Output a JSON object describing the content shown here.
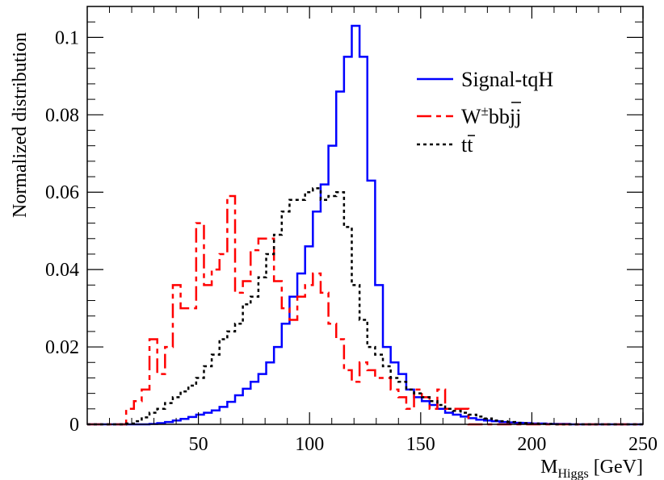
{
  "chart_data": {
    "type": "line",
    "title": "",
    "xlabel": "[GeV]",
    "xlabel_main": "M",
    "xlabel_sub": "Higgs",
    "ylabel": "Normalized distribution",
    "xlim": [
      0,
      250
    ],
    "ylim": [
      0,
      0.108
    ],
    "xticks": [
      50,
      100,
      150,
      200,
      250
    ],
    "xtick_labels": [
      "50",
      "100",
      "150",
      "200",
      "250"
    ],
    "yticks": [
      0,
      0.02,
      0.04,
      0.06,
      0.08,
      0.1
    ],
    "ytick_labels": [
      "0",
      "0.02",
      "0.04",
      "0.06",
      "0.08",
      "0.1"
    ],
    "grid": false,
    "legend_position": "top-right",
    "bin_width": 3.5,
    "bins_start": 0,
    "series": [
      {
        "name": "Signal-tqH",
        "color": "#0000ff",
        "style": "solid",
        "values": [
          0,
          0,
          0,
          0,
          0,
          0,
          0,
          0,
          0.0001,
          0.0003,
          0.0006,
          0.001,
          0.0014,
          0.0019,
          0.0025,
          0.003,
          0.0036,
          0.0045,
          0.0058,
          0.0075,
          0.0092,
          0.011,
          0.013,
          0.016,
          0.02,
          0.026,
          0.033,
          0.039,
          0.046,
          0.055,
          0.062,
          0.072,
          0.086,
          0.095,
          0.103,
          0.095,
          0.063,
          0.036,
          0.02,
          0.016,
          0.013,
          0.009,
          0.007,
          0.006,
          0.005,
          0.004,
          0.003,
          0.0025,
          0.002,
          0.0016,
          0.0012,
          0.001,
          0.0008,
          0.0006,
          0.0005,
          0.0004,
          0.0003,
          0.0002,
          0.0002,
          0.0001,
          0.0001,
          0.0001,
          0,
          0,
          0,
          0,
          0,
          0,
          0,
          0,
          0,
          0
        ]
      },
      {
        "name": "W±bb̄jj",
        "color": "#ff0000",
        "style": "dashed",
        "values": [
          0,
          0,
          0,
          0,
          0,
          0.004,
          0.006,
          0.009,
          0.022,
          0.013,
          0.02,
          0.036,
          0.03,
          0.03,
          0.052,
          0.036,
          0.04,
          0.044,
          0.059,
          0.034,
          0.037,
          0.045,
          0.048,
          0.048,
          0.037,
          0.03,
          0.027,
          0.033,
          0.036,
          0.039,
          0.034,
          0.026,
          0.022,
          0.014,
          0.011,
          0.016,
          0.014,
          0.012,
          0.012,
          0.009,
          0.007,
          0.004,
          0.009,
          0.007,
          0.004,
          0.009,
          0.004,
          0.004,
          0.004,
          0,
          0,
          0,
          0,
          0,
          0,
          0,
          0,
          0,
          0,
          0,
          0,
          0,
          0,
          0,
          0,
          0,
          0,
          0,
          0,
          0,
          0,
          0
        ]
      },
      {
        "name": "tt̄",
        "color": "#000000",
        "style": "dotted",
        "values": [
          0,
          0,
          0,
          0,
          0,
          0.0002,
          0.0008,
          0.0018,
          0.003,
          0.004,
          0.0055,
          0.007,
          0.0085,
          0.01,
          0.012,
          0.015,
          0.018,
          0.022,
          0.024,
          0.026,
          0.031,
          0.033,
          0.038,
          0.044,
          0.049,
          0.055,
          0.058,
          0.058,
          0.06,
          0.061,
          0.058,
          0.059,
          0.06,
          0.051,
          0.036,
          0.027,
          0.02,
          0.018,
          0.015,
          0.012,
          0.011,
          0.009,
          0.008,
          0.007,
          0.006,
          0.005,
          0.004,
          0.0035,
          0.003,
          0.0025,
          0.002,
          0.0015,
          0.001,
          0.0008,
          0.0006,
          0.0004,
          0.0003,
          0.0002,
          0.0001,
          0.0001,
          0,
          0,
          0,
          0,
          0,
          0,
          0,
          0,
          0,
          0,
          0,
          0
        ]
      }
    ],
    "legend": {
      "signal": "Signal-tqH",
      "wbb_main": "W",
      "wbb_sup": "±",
      "wbb_b1": "b",
      "wbb_b2": "b",
      "wbb_jj": "jj",
      "tt_t1": "t",
      "tt_t2": "t"
    }
  }
}
